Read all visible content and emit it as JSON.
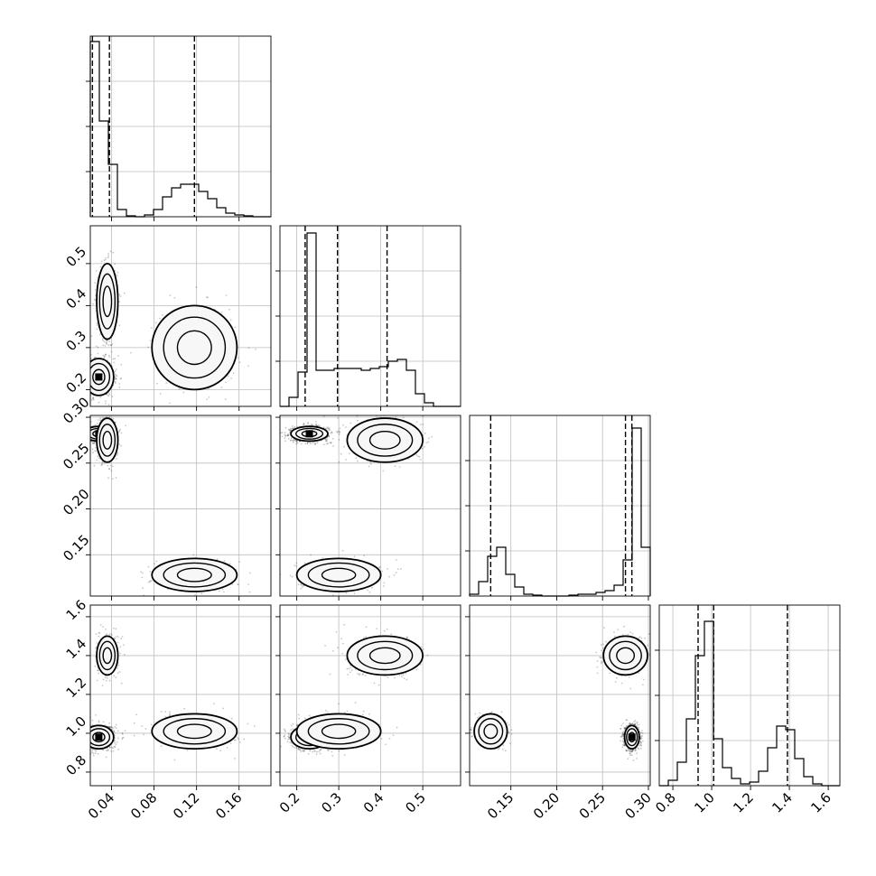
{
  "chart_data": {
    "type": "corner",
    "title": "",
    "parameters": [
      {
        "range": [
          0.02,
          0.19
        ],
        "ticks": [
          0.04,
          0.08,
          0.12,
          0.16
        ],
        "tick_labels": [
          "0.04",
          "0.08",
          "0.12",
          "0.16"
        ],
        "quantiles": [
          0.022,
          0.038,
          0.118
        ]
      },
      {
        "range": [
          0.16,
          0.59
        ],
        "ticks": [
          0.2,
          0.3,
          0.4,
          0.5
        ],
        "tick_labels": [
          "0.2",
          "0.3",
          "0.4",
          "0.5"
        ],
        "quantiles": [
          0.22,
          0.297,
          0.415
        ]
      },
      {
        "range": [
          0.105,
          0.302
        ],
        "ticks": [
          0.15,
          0.2,
          0.25,
          0.3
        ],
        "tick_labels": [
          "0.15",
          "0.20",
          "0.25",
          "0.30"
        ],
        "quantiles": [
          0.128,
          0.275,
          0.282
        ]
      },
      {
        "range": [
          0.73,
          1.66
        ],
        "ticks": [
          0.8,
          1.0,
          1.2,
          1.4,
          1.6
        ],
        "tick_labels": [
          "0.8",
          "1.0",
          "1.2",
          "1.4",
          "1.6"
        ],
        "quantiles": [
          0.93,
          1.01,
          1.39
        ]
      }
    ],
    "histograms": [
      {
        "bins": 20,
        "counts": [
          0.97,
          0.53,
          0.29,
          0.04,
          0.005,
          0.0,
          0.01,
          0.04,
          0.11,
          0.16,
          0.18,
          0.18,
          0.14,
          0.1,
          0.05,
          0.02,
          0.01,
          0.005,
          0.0,
          0.0
        ]
      },
      {
        "bins": 20,
        "counts": [
          0.0,
          0.05,
          0.19,
          0.96,
          0.2,
          0.2,
          0.21,
          0.21,
          0.21,
          0.2,
          0.21,
          0.22,
          0.25,
          0.26,
          0.2,
          0.07,
          0.02,
          0.0,
          0.0,
          0.0
        ]
      },
      {
        "bins": 20,
        "counts": [
          0.01,
          0.08,
          0.22,
          0.27,
          0.12,
          0.05,
          0.01,
          0.005,
          0.0,
          0.0,
          0.0,
          0.005,
          0.01,
          0.01,
          0.02,
          0.03,
          0.06,
          0.2,
          0.93,
          0.27
        ]
      },
      {
        "bins": 20,
        "counts": [
          0.0,
          0.03,
          0.13,
          0.37,
          0.72,
          0.91,
          0.26,
          0.1,
          0.04,
          0.01,
          0.02,
          0.08,
          0.21,
          0.33,
          0.31,
          0.15,
          0.05,
          0.01,
          0.0,
          0.0
        ]
      }
    ],
    "modes": [
      {
        "weight": 0.6,
        "center": [
          0.028,
          0.23,
          0.282,
          0.98
        ],
        "sd": [
          0.007,
          0.022,
          0.004,
          0.03
        ]
      },
      {
        "weight": 0.25,
        "center": [
          0.036,
          0.41,
          0.275,
          1.4
        ],
        "sd": [
          0.005,
          0.045,
          0.012,
          0.05
        ]
      },
      {
        "weight": 0.15,
        "center": [
          0.118,
          0.3,
          0.128,
          1.01
        ],
        "sd": [
          0.02,
          0.05,
          0.009,
          0.045
        ]
      }
    ],
    "grid": true,
    "show_quantile_lines": true
  }
}
